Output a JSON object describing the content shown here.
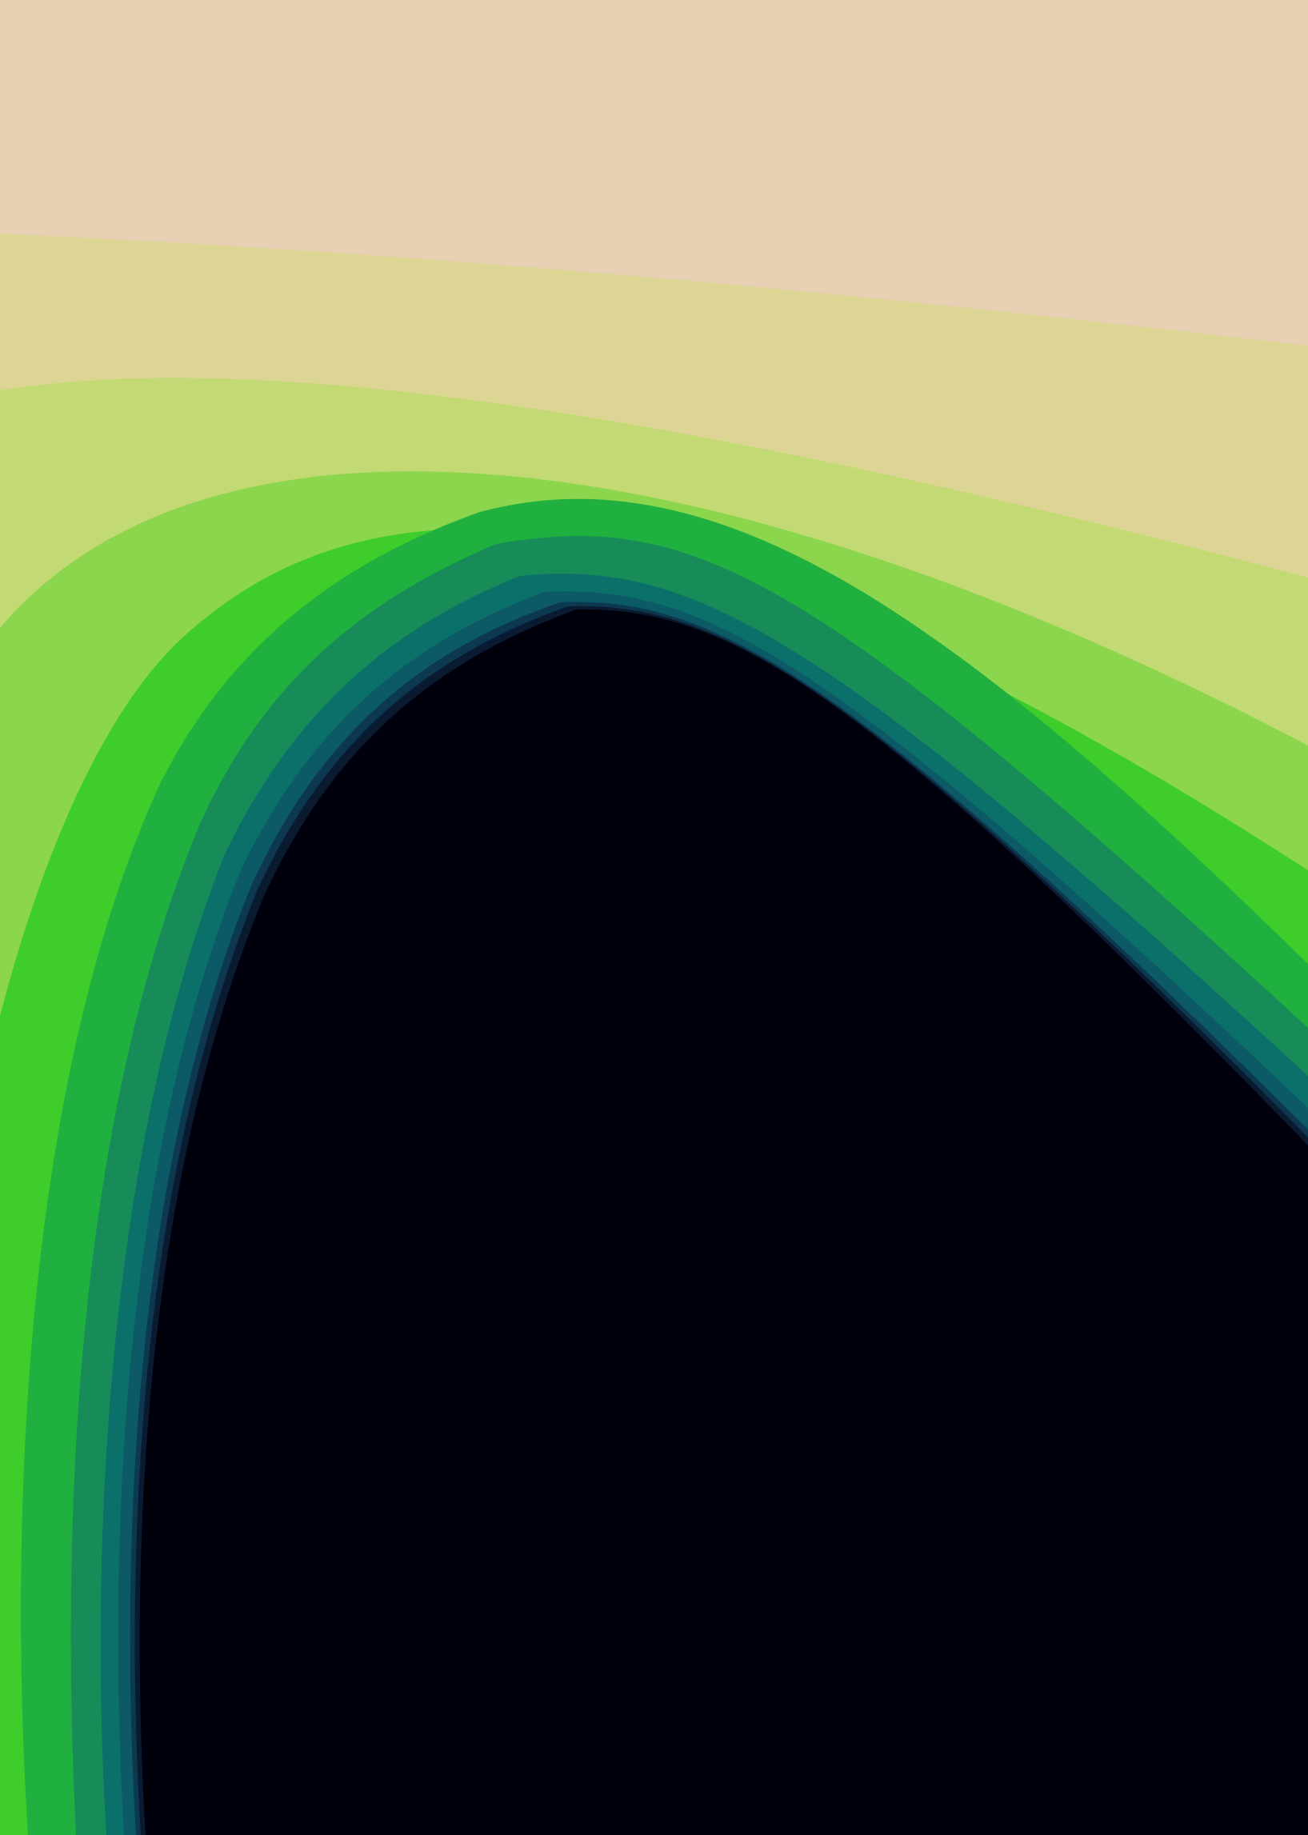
{
  "chart_data": {
    "type": "filled-contour",
    "title": "",
    "xlabel": "",
    "ylabel": "",
    "grid": false,
    "legend": "none",
    "axes_visible": false,
    "tick_labels_visible": false,
    "colormap": "gist_earth_r",
    "series": [
      {
        "level": 1,
        "color": "#e8d0b4"
      },
      {
        "level": 2,
        "color": "#ddd594"
      },
      {
        "level": 3,
        "color": "#c3d974"
      },
      {
        "level": 4,
        "color": "#8cd64e"
      },
      {
        "level": 5,
        "color": "#3fcd2c"
      },
      {
        "level": 6,
        "color": "#20b040"
      },
      {
        "level": 7,
        "color": "#178c58"
      },
      {
        "level": 8,
        "color": "#0c706a"
      },
      {
        "level": 9,
        "color": "#0b5a66"
      },
      {
        "level": 10,
        "color": "#0c3850"
      },
      {
        "level": 11,
        "color": "#0a1a30"
      },
      {
        "level": 12,
        "color": "#00000c"
      }
    ]
  }
}
